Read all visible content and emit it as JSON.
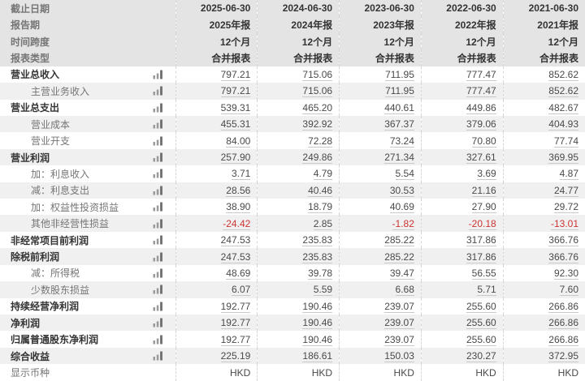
{
  "colors": {
    "header-bg": "#e4e4e4",
    "stripe-bg": "#f0f0f0",
    "divider": "#d6d6d6",
    "underline": "#c9c9c9",
    "negative": "#cc3333",
    "label-strong": "#333333",
    "label-muted": "#757575",
    "value-color": "#4a4a4a"
  },
  "table": {
    "header_rows": [
      {
        "label": "截止日期",
        "values": [
          "2025-06-30",
          "2024-06-30",
          "2023-06-30",
          "2022-06-30",
          "2021-06-30"
        ]
      },
      {
        "label": "报告期",
        "values": [
          "2025年报",
          "2024年报",
          "2023年报",
          "2022年报",
          "2021年报"
        ]
      },
      {
        "label": "时间跨度",
        "values": [
          "12个月",
          "12个月",
          "12个月",
          "12个月",
          "12个月"
        ]
      },
      {
        "label": "报表类型",
        "values": [
          "合并报表",
          "合并报表",
          "合并报表",
          "合并报表",
          "合并报表"
        ]
      }
    ],
    "body_rows": [
      {
        "label": "营业总收入",
        "bold": true,
        "indent": false,
        "icon": true,
        "underline": true,
        "values": [
          "797.21",
          "715.06",
          "711.95",
          "777.47",
          "852.62"
        ]
      },
      {
        "label": "主营业务收入",
        "bold": false,
        "indent": true,
        "icon": true,
        "underline": true,
        "values": [
          "797.21",
          "715.06",
          "711.95",
          "777.47",
          "852.62"
        ]
      },
      {
        "label": "营业总支出",
        "bold": true,
        "indent": false,
        "icon": true,
        "underline": true,
        "values": [
          "539.31",
          "465.20",
          "440.61",
          "449.86",
          "482.67"
        ]
      },
      {
        "label": "营业成本",
        "bold": false,
        "indent": true,
        "icon": true,
        "underline": true,
        "values": [
          "455.31",
          "392.92",
          "367.37",
          "379.06",
          "404.93"
        ]
      },
      {
        "label": "营业开支",
        "bold": false,
        "indent": true,
        "icon": true,
        "underline": true,
        "values": [
          "84.00",
          "72.28",
          "73.24",
          "70.80",
          "77.74"
        ]
      },
      {
        "label": "营业利润",
        "bold": true,
        "indent": false,
        "icon": true,
        "underline": true,
        "values": [
          "257.90",
          "249.86",
          "271.34",
          "327.61",
          "369.95"
        ]
      },
      {
        "label": "加：利息收入",
        "bold": false,
        "indent": true,
        "icon": true,
        "underline": true,
        "values": [
          "3.71",
          "4.79",
          "5.54",
          "3.69",
          "4.87"
        ]
      },
      {
        "label": "减：利息支出",
        "bold": false,
        "indent": true,
        "icon": true,
        "underline": true,
        "values": [
          "28.56",
          "40.46",
          "30.53",
          "21.16",
          "24.77"
        ]
      },
      {
        "label": "加：权益性投资损益",
        "bold": false,
        "indent": true,
        "icon": true,
        "underline": true,
        "values": [
          "38.90",
          "18.79",
          "40.69",
          "27.90",
          "29.72"
        ]
      },
      {
        "label": "其他非经营性损益",
        "bold": false,
        "indent": true,
        "icon": true,
        "underline": true,
        "values": [
          "-24.42",
          "2.85",
          "-1.82",
          "-20.18",
          "-13.01"
        ]
      },
      {
        "label": "非经常项目前利润",
        "bold": true,
        "indent": false,
        "icon": true,
        "underline": true,
        "values": [
          "247.53",
          "235.83",
          "285.22",
          "317.86",
          "366.76"
        ]
      },
      {
        "label": "除税前利润",
        "bold": true,
        "indent": false,
        "icon": true,
        "underline": true,
        "values": [
          "247.53",
          "235.83",
          "285.22",
          "317.86",
          "366.76"
        ]
      },
      {
        "label": "减：所得税",
        "bold": false,
        "indent": true,
        "icon": true,
        "underline": true,
        "values": [
          "48.69",
          "39.78",
          "39.47",
          "56.55",
          "92.30"
        ]
      },
      {
        "label": "少数股东损益",
        "bold": false,
        "indent": true,
        "icon": true,
        "underline": true,
        "values": [
          "6.07",
          "5.59",
          "6.68",
          "5.71",
          "7.60"
        ]
      },
      {
        "label": "持续经营净利润",
        "bold": true,
        "indent": false,
        "icon": true,
        "underline": true,
        "values": [
          "192.77",
          "190.46",
          "239.07",
          "255.60",
          "266.86"
        ]
      },
      {
        "label": "净利润",
        "bold": true,
        "indent": false,
        "icon": true,
        "underline": true,
        "values": [
          "192.77",
          "190.46",
          "239.07",
          "255.60",
          "266.86"
        ]
      },
      {
        "label": "归属普通股东净利润",
        "bold": true,
        "indent": false,
        "icon": true,
        "underline": true,
        "values": [
          "192.77",
          "190.46",
          "239.07",
          "255.60",
          "266.86"
        ]
      },
      {
        "label": "综合收益",
        "bold": true,
        "indent": false,
        "icon": true,
        "underline": true,
        "values": [
          "225.19",
          "186.61",
          "150.03",
          "230.27",
          "372.95"
        ]
      },
      {
        "label": "显示币种",
        "bold": false,
        "indent": false,
        "icon": false,
        "underline": false,
        "values": [
          "HKD",
          "HKD",
          "HKD",
          "HKD",
          "HKD"
        ]
      }
    ]
  }
}
